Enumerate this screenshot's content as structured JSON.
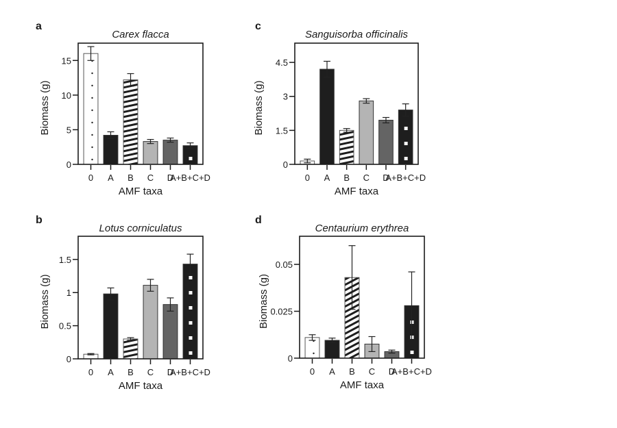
{
  "chart_data": [
    {
      "type": "bar",
      "panel": "a",
      "title": "Carex flacca",
      "xlabel": "AMF taxa",
      "ylabel": "Biomass (g)",
      "categories": [
        "0",
        "A",
        "B",
        "C",
        "D",
        "A+B+C+D"
      ],
      "values": [
        16.0,
        4.2,
        12.2,
        3.3,
        3.5,
        2.7
      ],
      "errors": [
        1.0,
        0.5,
        0.9,
        0.3,
        0.3,
        0.4
      ],
      "yticks": [
        0,
        5,
        10,
        15
      ],
      "ytick_labels": [
        "0",
        "5",
        "10",
        "15"
      ],
      "ylim": [
        0,
        17.5
      ]
    },
    {
      "type": "bar",
      "panel": "b",
      "title": "Lotus corniculatus",
      "xlabel": "AMF taxa",
      "ylabel": "Biomass (g)",
      "categories": [
        "0",
        "A",
        "B",
        "C",
        "D",
        "A+B+C+D"
      ],
      "values": [
        0.07,
        0.98,
        0.3,
        1.11,
        0.82,
        1.43
      ],
      "errors": [
        0.01,
        0.09,
        0.02,
        0.09,
        0.1,
        0.15
      ],
      "yticks": [
        0,
        0.5,
        1,
        1.5
      ],
      "ytick_labels": [
        "0",
        "0.5",
        "1",
        "1.5"
      ],
      "ylim": [
        0,
        1.85
      ]
    },
    {
      "type": "bar",
      "panel": "c",
      "title": "Sanguisorba officinalis",
      "xlabel": "AMF taxa",
      "ylabel": "Biomass (g)",
      "categories": [
        "0",
        "A",
        "B",
        "C",
        "D",
        "A+B+C+D"
      ],
      "values": [
        0.15,
        4.2,
        1.5,
        2.8,
        1.95,
        2.4
      ],
      "errors": [
        0.08,
        0.35,
        0.08,
        0.1,
        0.12,
        0.27
      ],
      "yticks": [
        0,
        1.5,
        3,
        4.5
      ],
      "ytick_labels": [
        "0",
        "1.5",
        "3",
        "4.5"
      ],
      "ylim": [
        0,
        5.35
      ]
    },
    {
      "type": "bar",
      "panel": "d",
      "title": "Centaurium erythrea",
      "xlabel": "AMF taxa",
      "ylabel": "Biomass (g)",
      "categories": [
        "0",
        "A",
        "B",
        "C",
        "D",
        "A+B+C+D"
      ],
      "values": [
        0.011,
        0.0095,
        0.043,
        0.0075,
        0.0035,
        0.028
      ],
      "errors": [
        0.0015,
        0.0012,
        0.017,
        0.004,
        0.0008,
        0.018
      ],
      "yticks": [
        0,
        0.025,
        0.05
      ],
      "ytick_labels": [
        "0",
        "0.025",
        "0.05"
      ],
      "ylim": [
        0,
        0.065
      ]
    }
  ],
  "bar_styles": [
    "dotted-white",
    "black",
    "striped",
    "light-gray",
    "dark-gray",
    "black-squares"
  ],
  "colors": {
    "black": "#1e1e1e",
    "light_gray": "#b4b4b4",
    "dark_gray": "#646464",
    "white": "#ffffff",
    "axis": "#1a1a1a"
  }
}
